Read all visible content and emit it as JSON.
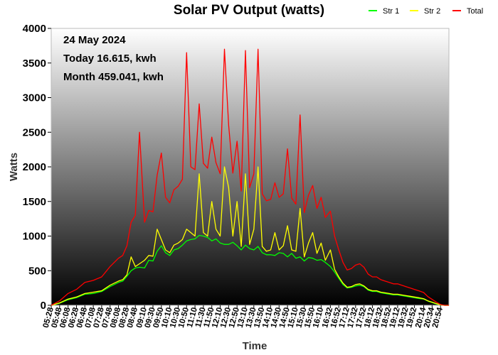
{
  "chart_data": {
    "type": "line",
    "title": "Solar PV Output (watts)",
    "xlabel": "Time",
    "ylabel": "Watts",
    "ylim": [
      0,
      4000
    ],
    "yticks": [
      0,
      500,
      1000,
      1500,
      2000,
      2500,
      3000,
      3500,
      4000
    ],
    "xticks": [
      "05:28",
      "05:48",
      "06:08",
      "06:28",
      "06:48",
      "07:08",
      "07:28",
      "07:48",
      "08:08",
      "08:28",
      "08:48",
      "09:10",
      "09:30",
      "09:50",
      "10:10",
      "10:30",
      "10:50",
      "11:10",
      "11:30",
      "11:50",
      "12:10",
      "12:30",
      "12:50",
      "13:10",
      "13:30",
      "13:50",
      "14:10",
      "14:30",
      "14:50",
      "15:10",
      "15:30",
      "15:50",
      "16:10",
      "16:32",
      "16:52",
      "17:12",
      "17:32",
      "17:52",
      "18:12",
      "18:32",
      "18:52",
      "19:12",
      "19:32",
      "19:52",
      "20:14",
      "20:34",
      "20:54"
    ],
    "legend_position": "top-right",
    "grid": false,
    "annotations": [
      "24 May 2024",
      "Today 16.615, kwh",
      "Month 459.041, kwh"
    ],
    "x": [
      "05:28",
      "05:48",
      "06:08",
      "06:28",
      "06:48",
      "07:08",
      "07:28",
      "07:48",
      "08:08",
      "08:18",
      "08:28",
      "08:38",
      "08:48",
      "08:58",
      "09:10",
      "09:20",
      "09:30",
      "09:40",
      "09:50",
      "10:00",
      "10:10",
      "10:20",
      "10:30",
      "10:40",
      "10:50",
      "11:00",
      "11:10",
      "11:20",
      "11:30",
      "11:40",
      "11:50",
      "12:00",
      "12:10",
      "12:20",
      "12:30",
      "12:40",
      "12:50",
      "13:00",
      "13:10",
      "13:20",
      "13:30",
      "13:40",
      "13:50",
      "14:00",
      "14:10",
      "14:20",
      "14:30",
      "14:40",
      "14:50",
      "15:00",
      "15:10",
      "15:20",
      "15:30",
      "15:40",
      "15:50",
      "16:00",
      "16:10",
      "16:20",
      "16:32",
      "16:42",
      "16:52",
      "17:02",
      "17:12",
      "17:22",
      "17:32",
      "17:42",
      "17:52",
      "18:02",
      "18:12",
      "18:22",
      "18:32",
      "18:42",
      "18:52",
      "19:02",
      "19:12",
      "19:22",
      "19:32",
      "19:42",
      "19:52",
      "20:02",
      "20:14",
      "20:24",
      "20:34",
      "20:44",
      "20:54",
      "21:04",
      "21:14"
    ],
    "series": [
      {
        "name": "Str 1",
        "color": "#00ff00",
        "values": [
          0,
          30,
          80,
          110,
          160,
          170,
          200,
          270,
          330,
          350,
          420,
          500,
          540,
          550,
          540,
          650,
          640,
          780,
          860,
          760,
          720,
          800,
          820,
          870,
          930,
          950,
          960,
          1010,
          1000,
          980,
          930,
          960,
          900,
          880,
          880,
          910,
          860,
          800,
          870,
          820,
          800,
          850,
          760,
          730,
          730,
          720,
          760,
          750,
          700,
          750,
          680,
          700,
          640,
          690,
          680,
          650,
          660,
          620,
          560,
          480,
          390,
          300,
          250,
          260,
          280,
          290,
          270,
          220,
          200,
          200,
          180,
          170,
          160,
          150,
          150,
          140,
          130,
          120,
          110,
          100,
          90,
          60,
          40,
          20,
          5,
          0,
          0
        ]
      },
      {
        "name": "Str 2",
        "color": "#ffff00",
        "values": [
          0,
          35,
          90,
          120,
          170,
          190,
          210,
          290,
          350,
          370,
          440,
          700,
          560,
          600,
          650,
          720,
          710,
          1100,
          950,
          800,
          760,
          870,
          900,
          950,
          1100,
          1050,
          1000,
          1900,
          1050,
          1000,
          1500,
          1100,
          1000,
          2000,
          1700,
          1000,
          1500,
          850,
          1900,
          880,
          1100,
          2000,
          850,
          780,
          800,
          1050,
          800,
          860,
          1150,
          800,
          780,
          1400,
          700,
          900,
          1050,
          750,
          900,
          650,
          800,
          520,
          410,
          320,
          260,
          270,
          300,
          310,
          280,
          230,
          210,
          210,
          190,
          180,
          170,
          160,
          160,
          150,
          140,
          130,
          120,
          110,
          95,
          65,
          45,
          25,
          6,
          0,
          0
        ]
      },
      {
        "name": "Total",
        "color": "#ff0000",
        "values": [
          0,
          65,
          170,
          230,
          330,
          360,
          410,
          560,
          680,
          720,
          860,
          1200,
          1300,
          2500,
          1200,
          1370,
          1350,
          1880,
          2200,
          1560,
          1480,
          1670,
          1720,
          1820,
          3650,
          2000,
          1960,
          2910,
          2050,
          1980,
          2430,
          2060,
          1900,
          3700,
          2600,
          1910,
          2370,
          1650,
          3680,
          1700,
          1900,
          3700,
          1610,
          1510,
          1530,
          1770,
          1560,
          1610,
          2260,
          1550,
          1460,
          2750,
          1340,
          1590,
          1730,
          1400,
          1560,
          1270,
          1360,
          1000,
          800,
          620,
          510,
          530,
          580,
          600,
          550,
          450,
          410,
          410,
          370,
          350,
          330,
          310,
          310,
          290,
          270,
          250,
          230,
          210,
          185,
          125,
          85,
          45,
          11,
          0,
          0
        ]
      }
    ]
  }
}
